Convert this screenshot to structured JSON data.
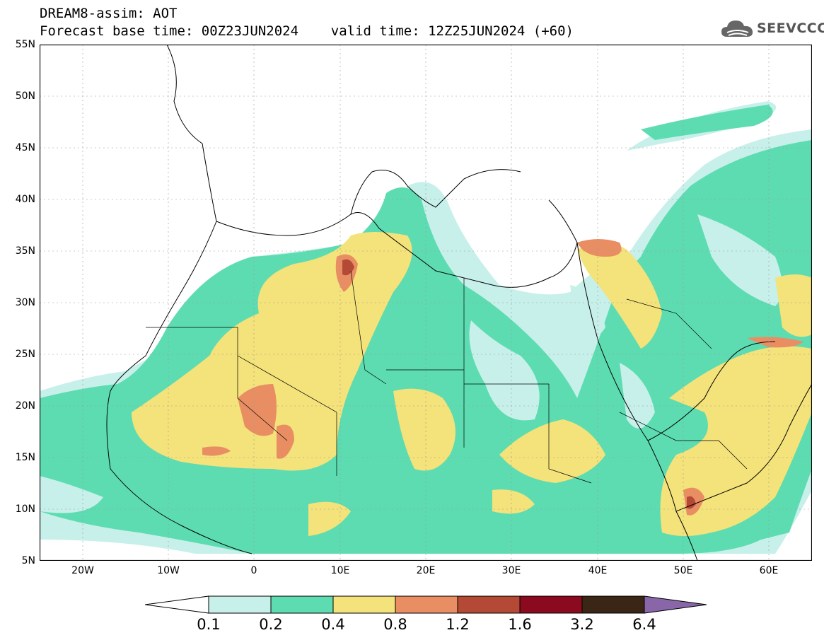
{
  "header": {
    "model_line": "DREAM8-assim: AOT",
    "base_time_line": "Forecast base time: 00Z23JUN2024    valid time: 12Z25JUN2024 (+60)"
  },
  "logo": {
    "text": "SEEVCCC",
    "icon": "cloud-icon"
  },
  "map": {
    "lat_labels": [
      "55N",
      "50N",
      "45N",
      "40N",
      "35N",
      "30N",
      "25N",
      "20N",
      "15N",
      "10N",
      "5N"
    ],
    "lon_labels": [
      "20W",
      "10W",
      "0",
      "10E",
      "20E",
      "30E",
      "40E",
      "50E",
      "60E"
    ]
  },
  "legend": {
    "levels": [
      "0.1",
      "0.2",
      "0.4",
      "0.8",
      "1.2",
      "1.6",
      "3.2",
      "6.4"
    ],
    "colors": [
      "#ffffff",
      "#c7f0ea",
      "#5ddcb1",
      "#f4e27a",
      "#e98e63",
      "#b44a35",
      "#8b0a1f",
      "#3b2616",
      "#8866a8"
    ]
  }
}
